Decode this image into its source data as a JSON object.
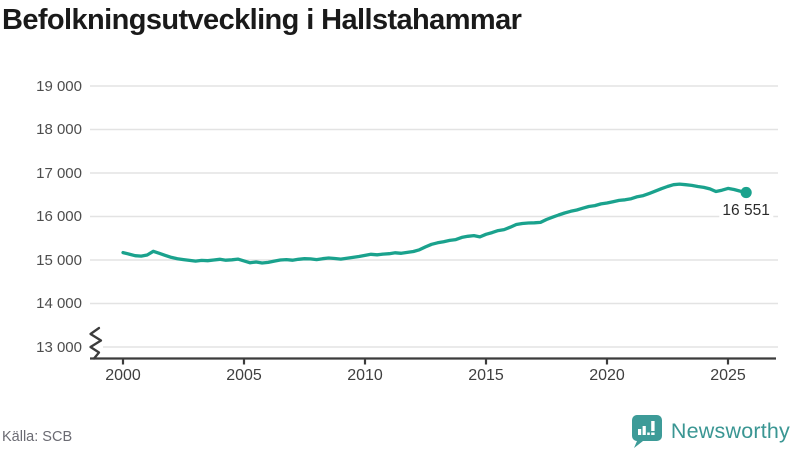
{
  "title": "Befolkningsutveckling i Hallstahammar",
  "source": "Källa: SCB",
  "branding": {
    "name": "Newsworthy",
    "color": "#3D9B98",
    "icon": "bar-chart-speech-bubble-icon"
  },
  "chart_data": {
    "type": "line",
    "title": "Befolkningsutveckling i Hallstahammar",
    "xlabel": "",
    "ylabel": "",
    "grid": true,
    "axis_break_at_bottom": true,
    "line_color": "#1AA28D",
    "marker_color": "#1AA28D",
    "grid_color": "#e3e3e3",
    "axis_color": "#3c3c3c",
    "ylim": [
      13000,
      19000
    ],
    "xlim": [
      2000,
      2025.75
    ],
    "y_ticks": [
      {
        "value": 19000,
        "label": "19 000"
      },
      {
        "value": 18000,
        "label": "18 000"
      },
      {
        "value": 17000,
        "label": "17 000"
      },
      {
        "value": 16000,
        "label": "16 000"
      },
      {
        "value": 15000,
        "label": "15 000"
      },
      {
        "value": 14000,
        "label": "14 000"
      },
      {
        "value": 13000,
        "label": "13 000"
      }
    ],
    "x_ticks": [
      {
        "value": 2000,
        "label": "2000"
      },
      {
        "value": 2005,
        "label": "2005"
      },
      {
        "value": 2010,
        "label": "2010"
      },
      {
        "value": 2015,
        "label": "2015"
      },
      {
        "value": 2020,
        "label": "2020"
      },
      {
        "value": 2025,
        "label": "2025"
      }
    ],
    "end_label": "16 551",
    "end_value": 16551,
    "series": [
      {
        "name": "Befolkning",
        "x": [
          2000.0,
          2000.25,
          2000.5,
          2000.75,
          2001.0,
          2001.25,
          2001.5,
          2001.75,
          2002.0,
          2002.25,
          2002.5,
          2002.75,
          2003.0,
          2003.25,
          2003.5,
          2003.75,
          2004.0,
          2004.25,
          2004.5,
          2004.75,
          2005.0,
          2005.25,
          2005.5,
          2005.75,
          2006.0,
          2006.25,
          2006.5,
          2006.75,
          2007.0,
          2007.25,
          2007.5,
          2007.75,
          2008.0,
          2008.25,
          2008.5,
          2008.75,
          2009.0,
          2009.25,
          2009.5,
          2009.75,
          2010.0,
          2010.25,
          2010.5,
          2010.75,
          2011.0,
          2011.25,
          2011.5,
          2011.75,
          2012.0,
          2012.25,
          2012.5,
          2012.75,
          2013.0,
          2013.25,
          2013.5,
          2013.75,
          2014.0,
          2014.25,
          2014.5,
          2014.75,
          2015.0,
          2015.25,
          2015.5,
          2015.75,
          2016.0,
          2016.25,
          2016.5,
          2016.75,
          2017.0,
          2017.25,
          2017.5,
          2017.75,
          2018.0,
          2018.25,
          2018.5,
          2018.75,
          2019.0,
          2019.25,
          2019.5,
          2019.75,
          2020.0,
          2020.25,
          2020.5,
          2020.75,
          2021.0,
          2021.25,
          2021.5,
          2021.75,
          2022.0,
          2022.25,
          2022.5,
          2022.75,
          2023.0,
          2023.25,
          2023.5,
          2023.75,
          2024.0,
          2024.25,
          2024.5,
          2024.75,
          2025.0,
          2025.25,
          2025.5,
          2025.75
        ],
        "values": [
          15170,
          15135,
          15100,
          15090,
          15115,
          15200,
          15155,
          15105,
          15060,
          15030,
          15010,
          14990,
          14975,
          14990,
          14985,
          15000,
          15015,
          14995,
          15005,
          15020,
          14980,
          14935,
          14955,
          14930,
          14945,
          14975,
          15000,
          15010,
          14995,
          15015,
          15030,
          15025,
          15010,
          15030,
          15045,
          15035,
          15020,
          15040,
          15060,
          15080,
          15105,
          15130,
          15120,
          15135,
          15145,
          15165,
          15155,
          15175,
          15195,
          15235,
          15300,
          15360,
          15395,
          15420,
          15450,
          15470,
          15520,
          15545,
          15560,
          15530,
          15590,
          15630,
          15675,
          15700,
          15755,
          15815,
          15840,
          15850,
          15855,
          15865,
          15930,
          15985,
          16035,
          16080,
          16120,
          16150,
          16190,
          16230,
          16250,
          16290,
          16310,
          16340,
          16370,
          16385,
          16410,
          16455,
          16480,
          16530,
          16585,
          16640,
          16690,
          16730,
          16745,
          16730,
          16715,
          16690,
          16670,
          16635,
          16575,
          16605,
          16645,
          16620,
          16585,
          16551
        ]
      }
    ]
  }
}
